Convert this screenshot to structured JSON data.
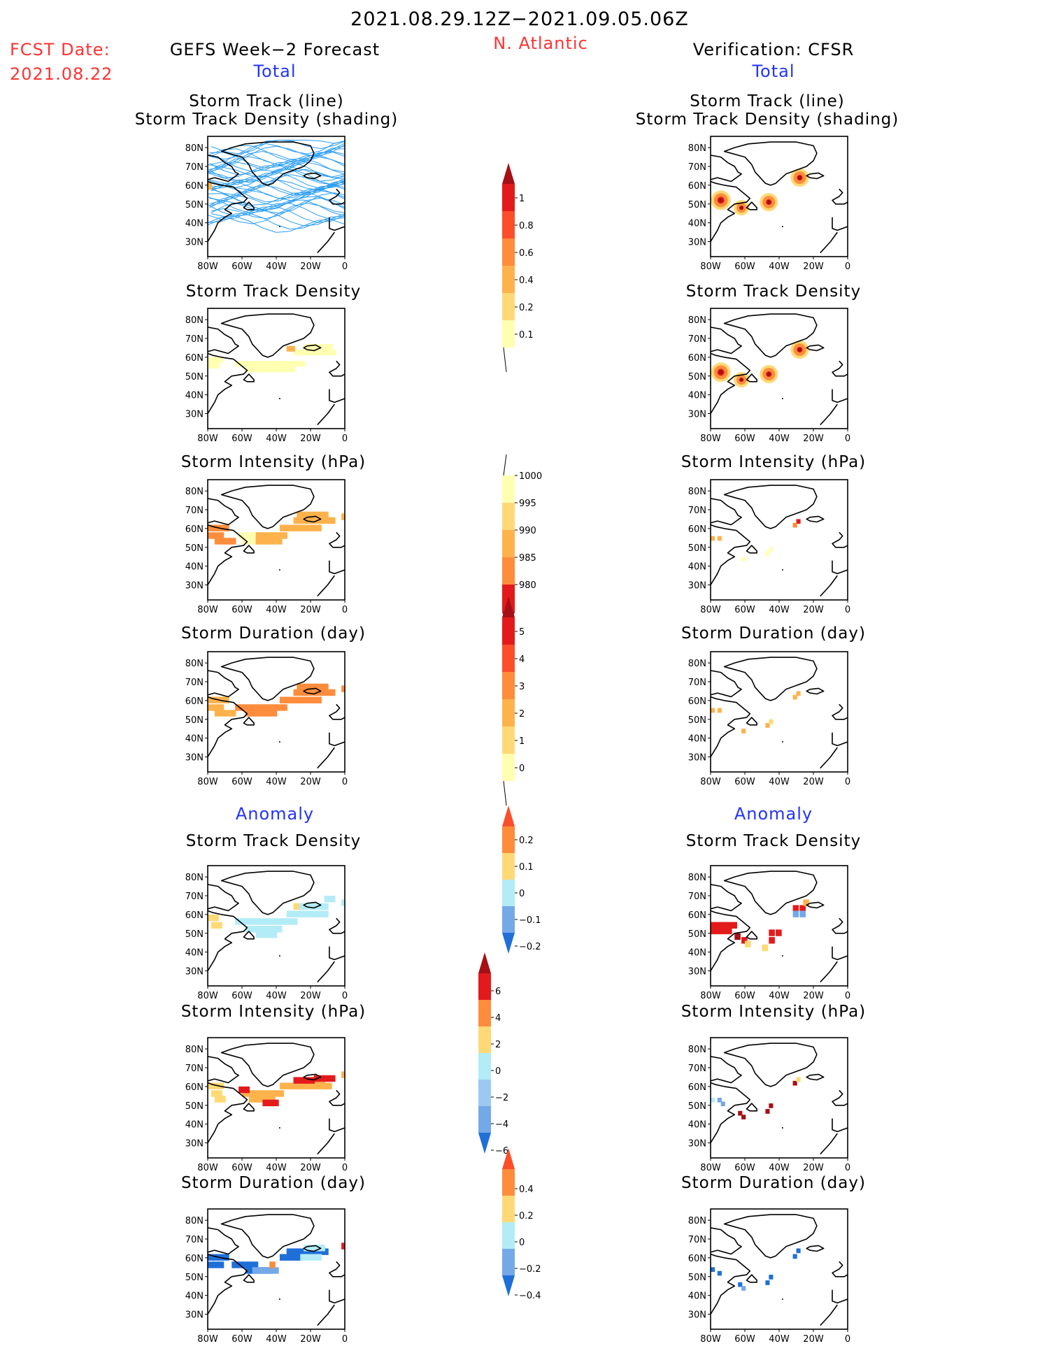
{
  "header": {
    "period": "2021.08.29.12Z−2021.09.05.06Z",
    "region": "N. Atlantic",
    "fcst_label": "FCST Date:",
    "fcst_date": "2021.08.22",
    "left_title": "GEFS Week−2 Forecast",
    "right_title": "Verification: CFSR",
    "total_left": "Total",
    "total_right": "Total",
    "anomaly_left": "Anomaly",
    "anomaly_right": "Anomaly"
  },
  "panels": {
    "track_title_1": "Storm Track (line)",
    "track_title_2": "Storm Track Density (shading)",
    "density": "Storm Track Density",
    "intensity": "Storm Intensity (hPa)",
    "duration": "Storm Duration (day)"
  },
  "axes": {
    "lat_labels": [
      "80N",
      "70N",
      "60N",
      "50N",
      "40N",
      "30N"
    ],
    "lon_labels": [
      "80W",
      "60W",
      "40W",
      "20W",
      "0"
    ]
  },
  "colorbars": [
    {
      "labels": [
        "1",
        "0.8",
        "0.6",
        "0.4",
        "0.2",
        "0.1"
      ],
      "colors": [
        "#a50f15",
        "#e31a1c",
        "#fc4e2a",
        "#fd8d3c",
        "#feb24c",
        "#fed976",
        "#ffffb2"
      ],
      "top_arrow": true,
      "bottom_arrow": false
    },
    {
      "labels": [
        "1000",
        "995",
        "990",
        "985",
        "980"
      ],
      "colors": [
        "#ffffb2",
        "#fed976",
        "#feb24c",
        "#fd8d3c",
        "#e31a1c",
        "#a50f15"
      ],
      "top_arrow": false,
      "bottom_arrow": true
    },
    {
      "labels": [
        "5",
        "4",
        "3",
        "2",
        "1",
        "0"
      ],
      "colors": [
        "#a50f15",
        "#e31a1c",
        "#fc4e2a",
        "#fd8d3c",
        "#feb24c",
        "#fed976",
        "#ffffb2"
      ],
      "top_arrow": true,
      "bottom_arrow": false
    },
    {
      "labels": [
        "0.2",
        "0.1",
        "0",
        "−0.1",
        "−0.2"
      ],
      "colors": [
        "#fc4e2a",
        "#fd8d3c",
        "#fed976",
        "#b3ecf7",
        "#74a9e8",
        "#1f6fd8"
      ],
      "top_arrow": true,
      "bottom_arrow": true
    },
    {
      "labels": [
        "6",
        "4",
        "2",
        "0",
        "−2",
        "−4",
        "−6"
      ],
      "colors": [
        "#a50f15",
        "#e31a1c",
        "#fd8d3c",
        "#fed976",
        "#b3ecf7",
        "#9cc9f0",
        "#74a9e8",
        "#1f6fd8"
      ],
      "top_arrow": true,
      "bottom_arrow": true
    },
    {
      "labels": [
        "0.4",
        "0.2",
        "0",
        "−0.2",
        "−0.4"
      ],
      "colors": [
        "#fc4e2a",
        "#fd8d3c",
        "#fed976",
        "#b3ecf7",
        "#74a9e8",
        "#1f6fd8"
      ],
      "top_arrow": true,
      "bottom_arrow": true
    }
  ],
  "colors": {
    "track_line": "#2a9df4",
    "title_red": "#ff3333",
    "title_blue": "#2233ff"
  }
}
